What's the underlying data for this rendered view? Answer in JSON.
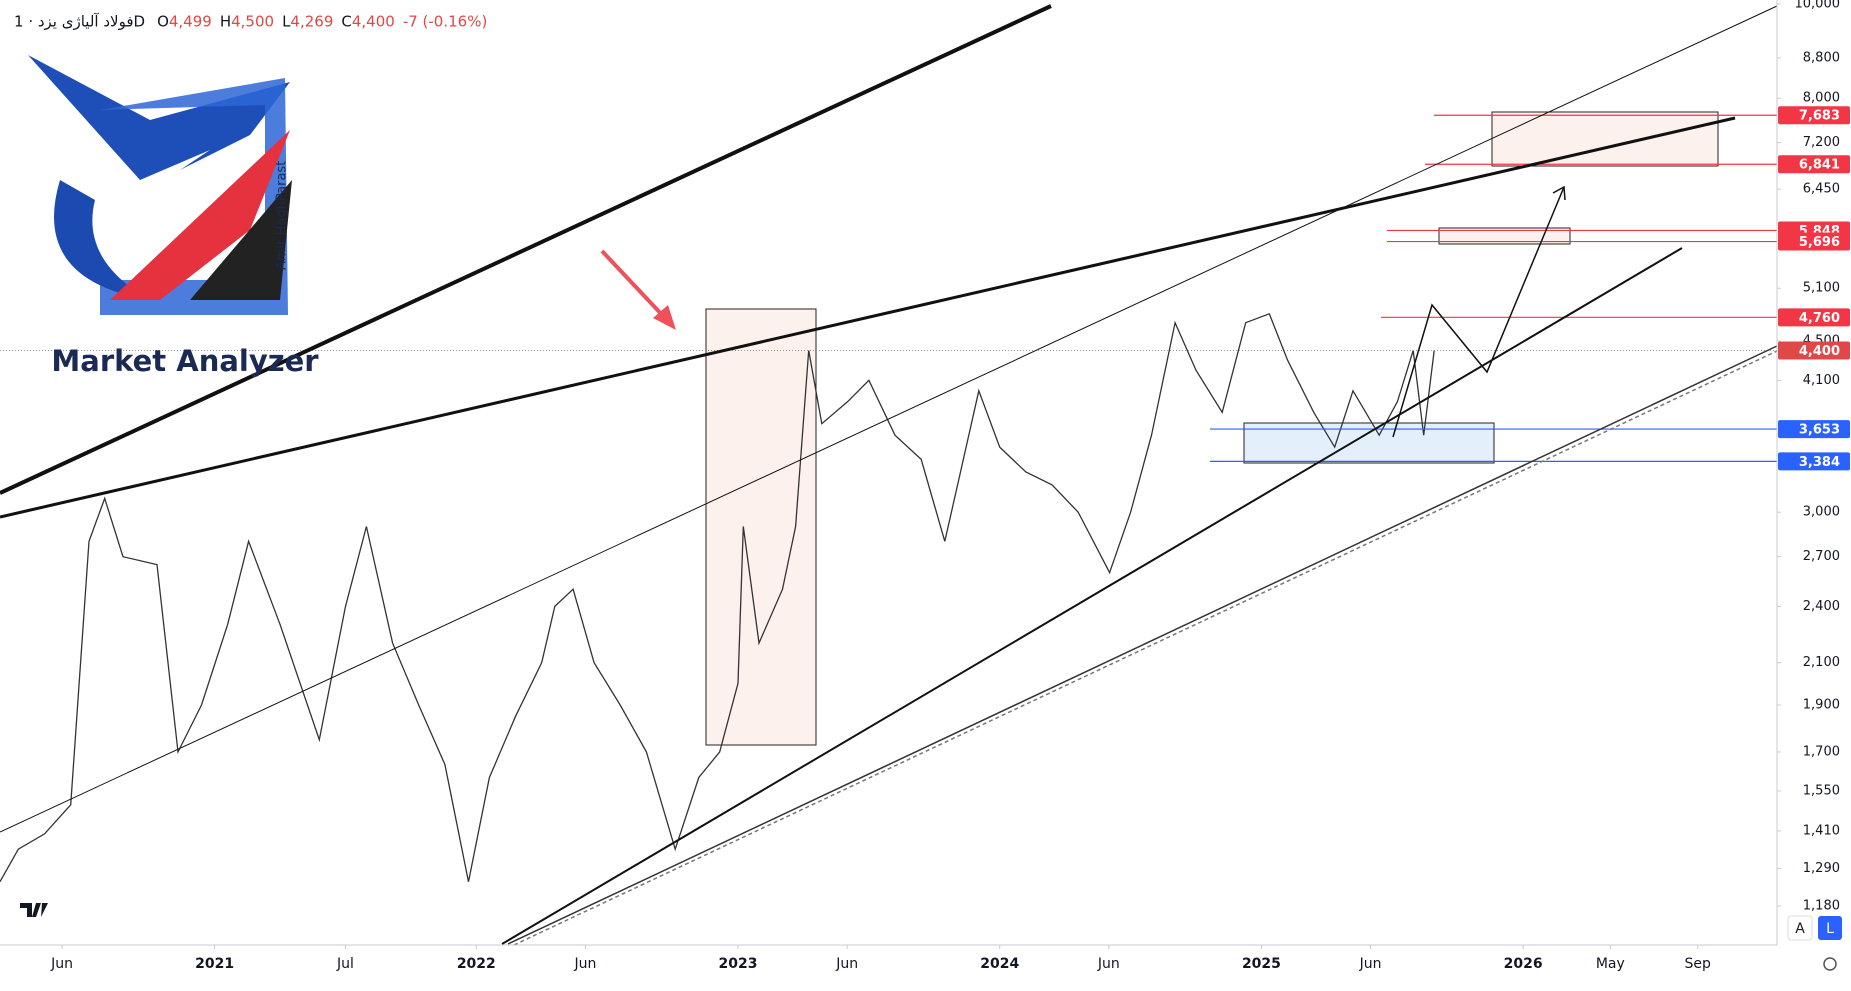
{
  "header": {
    "symbol": "فولاد آلیاژی یزد · 1D",
    "quote": [
      {
        "k": "O",
        "v": "4,499"
      },
      {
        "k": "H",
        "v": "4,500"
      },
      {
        "k": "L",
        "v": "4,269"
      },
      {
        "k": "C",
        "v": "4,400"
      }
    ],
    "change": "-7 (-0.16%)"
  },
  "logo": {
    "title": "Market Analyzer",
    "author": "Amir HaghParast"
  },
  "toolbar": {
    "auto": "A",
    "log": "L"
  },
  "chart_data": {
    "type": "line",
    "log_scale": true,
    "x": [
      2020.18,
      2020.25,
      2020.35,
      2020.45,
      2020.52,
      2020.58,
      2020.65,
      2020.78,
      2020.86,
      2020.95,
      2021.05,
      2021.13,
      2021.25,
      2021.4,
      2021.5,
      2021.58,
      2021.68,
      2021.78,
      2021.88,
      2021.97,
      2022.05,
      2022.15,
      2022.25,
      2022.3,
      2022.37,
      2022.45,
      2022.55,
      2022.65,
      2022.76,
      2022.85,
      2022.93,
      2023.0,
      2023.02,
      2023.08,
      2023.17,
      2023.22,
      2023.27,
      2023.32,
      2023.42,
      2023.5,
      2023.6,
      2023.7,
      2023.79,
      2023.85,
      2023.92,
      2024.0,
      2024.1,
      2024.2,
      2024.3,
      2024.42,
      2024.5,
      2024.58,
      2024.67,
      2024.75,
      2024.85,
      2024.94,
      2025.03,
      2025.1,
      2025.2,
      2025.28,
      2025.35,
      2025.45,
      2025.52,
      2025.58,
      2025.62,
      2025.66
    ],
    "series": [
      {
        "name": "Close",
        "color": "#333333",
        "values": [
          1250,
          1350,
          1400,
          1500,
          2800,
          3100,
          2700,
          2650,
          1700,
          1900,
          2300,
          2800,
          2300,
          1750,
          2400,
          2900,
          2200,
          1900,
          1650,
          1250,
          1600,
          1850,
          2100,
          2400,
          2500,
          2100,
          1900,
          1700,
          1350,
          1600,
          1700,
          2000,
          2900,
          2200,
          2500,
          2900,
          4400,
          3700,
          3900,
          4100,
          3600,
          3400,
          2800,
          3300,
          4000,
          3500,
          3300,
          3200,
          3000,
          2600,
          3000,
          3600,
          4700,
          4200,
          3800,
          4700,
          4800,
          4300,
          3800,
          3500,
          4000,
          3600,
          3900,
          4400,
          3600,
          4400
        ]
      }
    ],
    "xlim": [
      2020.18,
      2026.97
    ],
    "xticks": [
      {
        "value": 2020.417,
        "label": "Jun"
      },
      {
        "value": 2021,
        "label": "2021"
      },
      {
        "value": 2021.5,
        "label": "Jul"
      },
      {
        "value": 2022,
        "label": "2022"
      },
      {
        "value": 2022.417,
        "label": "Jun"
      },
      {
        "value": 2023,
        "label": "2023"
      },
      {
        "value": 2023.417,
        "label": "Jun"
      },
      {
        "value": 2024,
        "label": "2024"
      },
      {
        "value": 2024.417,
        "label": "Jun"
      },
      {
        "value": 2025,
        "label": "2025"
      },
      {
        "value": 2025.417,
        "label": "Jun"
      },
      {
        "value": 2026,
        "label": "2026"
      },
      {
        "value": 2026.333,
        "label": "May"
      },
      {
        "value": 2026.667,
        "label": "Sep"
      }
    ],
    "ylim": [
      1076,
      10095
    ],
    "yticks": [
      {
        "value": 10000,
        "label": "10,000"
      },
      {
        "value": 8800,
        "label": "8,800"
      },
      {
        "value": 8000,
        "label": "8,000"
      },
      {
        "value": 7200,
        "label": "7,200"
      },
      {
        "value": 6450,
        "label": "6,450"
      },
      {
        "value": 5100,
        "label": "5,100"
      },
      {
        "value": 4500,
        "label": "4,500"
      },
      {
        "value": 4100,
        "label": "4,100"
      },
      {
        "value": 3000,
        "label": "3,000"
      },
      {
        "value": 2700,
        "label": "2,700"
      },
      {
        "value": 2400,
        "label": "2,400"
      },
      {
        "value": 2100,
        "label": "2,100"
      },
      {
        "value": 1900,
        "label": "1,900"
      },
      {
        "value": 1700,
        "label": "1,700"
      },
      {
        "value": 1550,
        "label": "1,550"
      },
      {
        "value": 1410,
        "label": "1,410"
      },
      {
        "value": 1290,
        "label": "1,290"
      },
      {
        "value": 1180,
        "label": "1,180"
      }
    ],
    "price_levels": [
      {
        "value": 7683,
        "label": "7,683",
        "color": "#f23645"
      },
      {
        "value": 6841,
        "label": "6,841",
        "color": "#f23645"
      },
      {
        "value": 5848,
        "label": "5,848",
        "color": "#f23645"
      },
      {
        "value": 5696,
        "label": "5,696",
        "color": "#f23645"
      },
      {
        "value": 4760,
        "label": "4,760",
        "color": "#f23645"
      },
      {
        "value": 3653,
        "label": "3,653",
        "color": "#2962ff"
      },
      {
        "value": 3384,
        "label": "3,384",
        "color": "#2962ff"
      }
    ],
    "last_price": {
      "value": 4400,
      "label": "4,400",
      "color": "#e04848"
    }
  }
}
